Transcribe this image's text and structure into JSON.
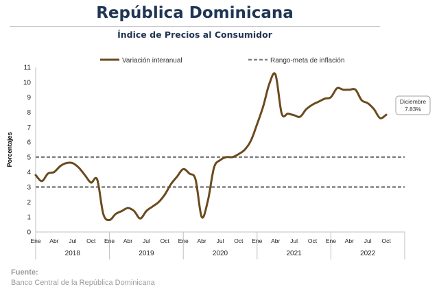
{
  "header": {
    "title": "República Dominicana",
    "subtitle": "Índice de Precios al Consumidor"
  },
  "footer": {
    "source_label": "Fuente:",
    "source_text": "Banco Central de la República Dominicana"
  },
  "colors": {
    "series": "#6b4a1e",
    "target": "#808080",
    "title": "#1f3553"
  },
  "chart_data": {
    "type": "line",
    "ylabel": "Porcentajes",
    "ylim": [
      0,
      11
    ],
    "yticks": [
      0,
      1,
      2,
      3,
      4,
      5,
      6,
      7,
      8,
      9,
      10,
      11
    ],
    "grid": false,
    "legend_position": "top",
    "month_tick_labels": [
      "Ene",
      "Abr",
      "Jul",
      "Oct"
    ],
    "years": [
      "2018",
      "2019",
      "2020",
      "2021",
      "2022"
    ],
    "series": [
      {
        "name": "Variación interanual",
        "style": "solid",
        "values": [
          3.8,
          3.4,
          3.9,
          4.0,
          4.4,
          4.6,
          4.6,
          4.3,
          3.8,
          3.3,
          3.5,
          1.2,
          0.8,
          1.2,
          1.4,
          1.6,
          1.4,
          0.9,
          1.4,
          1.7,
          2.0,
          2.5,
          3.2,
          3.7,
          4.2,
          3.9,
          3.5,
          1.0,
          2.1,
          4.3,
          4.8,
          5.0,
          5.0,
          5.2,
          5.5,
          6.1,
          7.2,
          8.4,
          9.9,
          10.5,
          7.9,
          7.9,
          7.8,
          7.7,
          8.2,
          8.5,
          8.7,
          8.9,
          9.0,
          9.6,
          9.5,
          9.5,
          9.5,
          8.8,
          8.6,
          8.2,
          7.6,
          7.83
        ]
      },
      {
        "name": "Rango-meta de inflación",
        "style": "dashed",
        "bounds": [
          3,
          5
        ]
      }
    ],
    "annotation": {
      "label": "Diciembre",
      "value_text": "7.83%"
    }
  }
}
